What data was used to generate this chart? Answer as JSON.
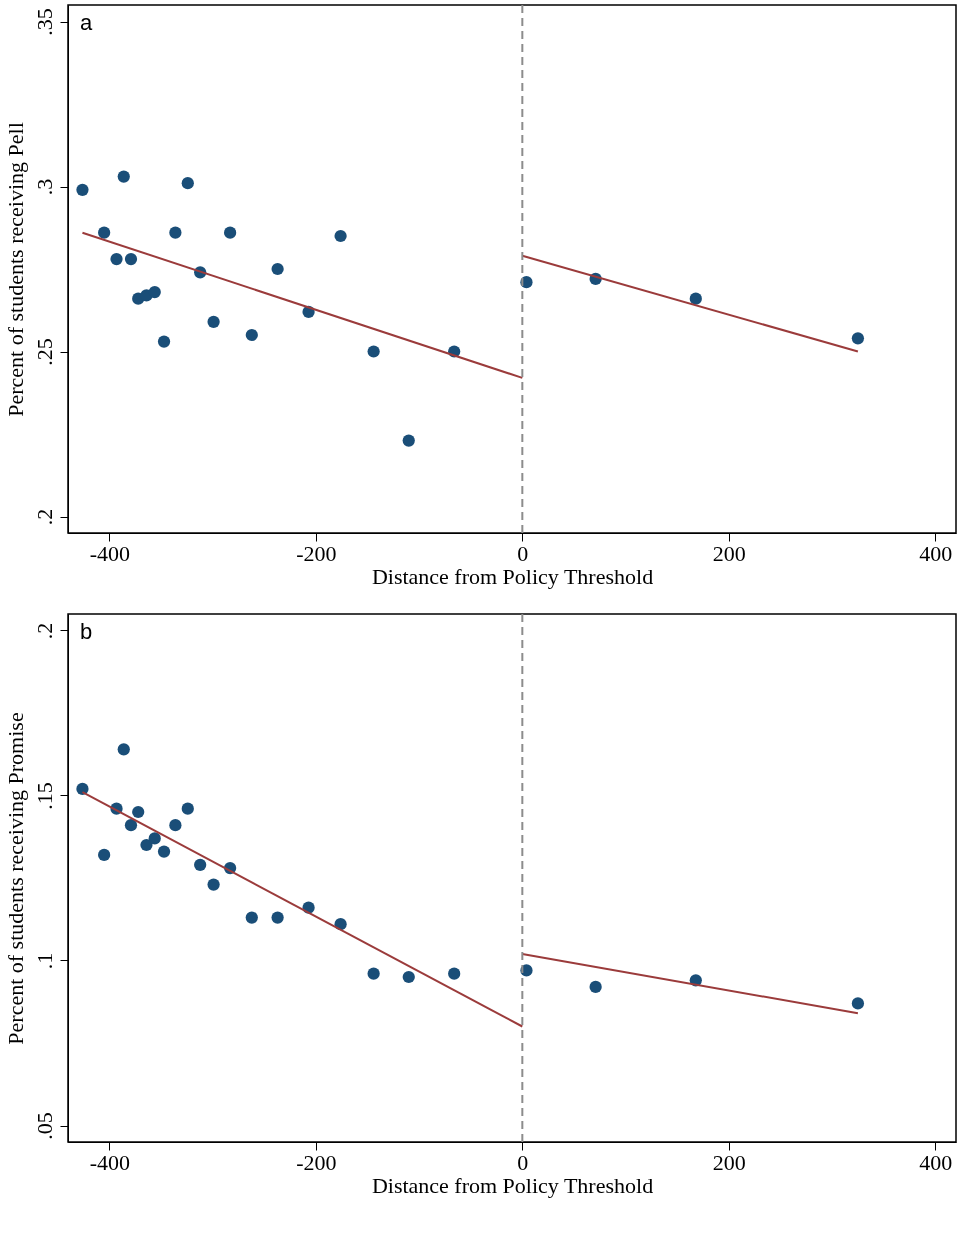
{
  "chart_data": [
    {
      "type": "scatter",
      "title": "a",
      "xlabel": "Distance from Policy Threshold",
      "ylabel": "Percent of students receiving Pell",
      "xlim": [
        -440,
        420
      ],
      "ylim": [
        0.195,
        0.355
      ],
      "xticks": [
        -400,
        -200,
        0,
        200,
        400
      ],
      "yticks": [
        {
          "value": 0.2,
          "label": ".2"
        },
        {
          "value": 0.25,
          "label": ".25"
        },
        {
          "value": 0.3,
          "label": ".3"
        },
        {
          "value": 0.35,
          "label": ".35"
        }
      ],
      "grid": false,
      "x": [
        -426,
        -405,
        -393,
        -386,
        -379,
        -372,
        -364,
        -356,
        -347,
        -336,
        -324,
        -312,
        -299,
        -283,
        -262,
        -237,
        -207,
        -176,
        -144,
        -110,
        -66,
        4,
        71,
        168,
        325
      ],
      "series": [
        {
          "marker": "circle",
          "color": "#1a4e78",
          "values": [
            0.299,
            0.286,
            0.278,
            0.303,
            0.278,
            0.266,
            0.267,
            0.268,
            0.253,
            0.286,
            0.301,
            0.274,
            0.259,
            0.286,
            0.255,
            0.275,
            0.262,
            0.285,
            0.25,
            0.223,
            0.25,
            0.271,
            0.272,
            0.266,
            0.254
          ]
        },
        {
          "type": "line",
          "color": "#9b3b3b",
          "line_style": "solid",
          "x": [
            -426,
            0
          ],
          "values": [
            0.286,
            0.242
          ]
        },
        {
          "type": "line",
          "color": "#9b3b3b",
          "line_style": "solid",
          "x": [
            0,
            325
          ],
          "values": [
            0.279,
            0.25
          ]
        }
      ],
      "ref_lines": [
        {
          "axis": "x",
          "value": 0,
          "color": "#8c8c8c",
          "line_style": "dashed"
        }
      ]
    },
    {
      "type": "scatter",
      "title": "b",
      "xlabel": "Distance from Policy Threshold",
      "ylabel": "Percent of students receiving Promise",
      "xlim": [
        -440,
        420
      ],
      "ylim": [
        0.045,
        0.205
      ],
      "xticks": [
        -400,
        -200,
        0,
        200,
        400
      ],
      "yticks": [
        {
          "value": 0.05,
          "label": ".05"
        },
        {
          "value": 0.1,
          "label": ".1"
        },
        {
          "value": 0.15,
          "label": ".15"
        },
        {
          "value": 0.2,
          "label": ".2"
        }
      ],
      "grid": false,
      "x": [
        -426,
        -405,
        -393,
        -386,
        -379,
        -372,
        -364,
        -356,
        -347,
        -336,
        -324,
        -312,
        -299,
        -283,
        -262,
        -237,
        -207,
        -176,
        -144,
        -110,
        -66,
        4,
        71,
        168,
        325
      ],
      "series": [
        {
          "marker": "circle",
          "color": "#1a4e78",
          "values": [
            0.152,
            0.132,
            0.146,
            0.164,
            0.141,
            0.145,
            0.135,
            0.137,
            0.133,
            0.141,
            0.146,
            0.129,
            0.123,
            0.128,
            0.113,
            0.113,
            0.116,
            0.111,
            0.096,
            0.095,
            0.096,
            0.097,
            0.092,
            0.094,
            0.087
          ]
        },
        {
          "type": "line",
          "color": "#9b3b3b",
          "line_style": "solid",
          "x": [
            -426,
            0
          ],
          "values": [
            0.151,
            0.08
          ]
        },
        {
          "type": "line",
          "color": "#9b3b3b",
          "line_style": "solid",
          "x": [
            0,
            325
          ],
          "values": [
            0.102,
            0.084
          ]
        }
      ],
      "ref_lines": [
        {
          "axis": "x",
          "value": 0,
          "color": "#8c8c8c",
          "line_style": "dashed"
        }
      ]
    }
  ]
}
